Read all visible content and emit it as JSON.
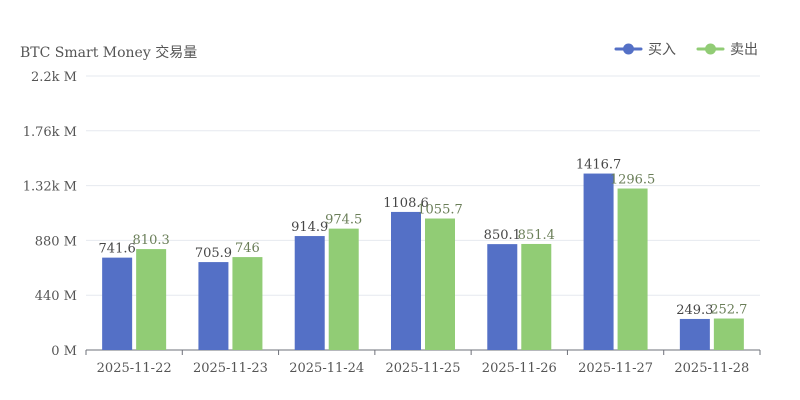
{
  "chart_data": {
    "type": "bar",
    "title": "BTC Smart Money 交易量",
    "xlabel": "",
    "ylabel": "",
    "categories": [
      "2025-11-22",
      "2025-11-23",
      "2025-11-24",
      "2025-11-25",
      "2025-11-26",
      "2025-11-27",
      "2025-11-28"
    ],
    "series": [
      {
        "name": "买入",
        "color": "#5470c6",
        "values": [
          741.6,
          705.9,
          914.9,
          1108.6,
          850.1,
          1416.7,
          249.3
        ]
      },
      {
        "name": "卖出",
        "color": "#91cc75",
        "values": [
          810.3,
          746,
          974.5,
          1055.7,
          851.4,
          1296.5,
          252.7
        ]
      }
    ],
    "ylim": [
      0,
      2200
    ],
    "yticks": [
      0,
      440,
      880,
      1320,
      1760,
      2200
    ],
    "ytick_labels": [
      "0 M",
      "440 M",
      "880 M",
      "1.32k M",
      "1.76k M",
      "2.2k M"
    ],
    "grid": true,
    "legend_position": "top-right"
  }
}
